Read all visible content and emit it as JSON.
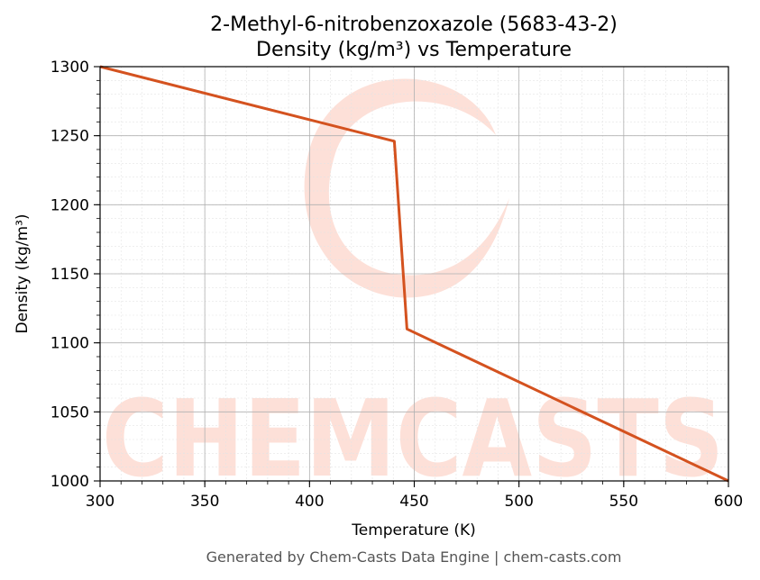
{
  "chart_data": {
    "type": "line",
    "title": "2-Methyl-6-nitrobenzoxazole (5683-43-2)",
    "subtitle": "Density (kg/m³) vs Temperature",
    "xlabel": "Temperature (K)",
    "ylabel": "Density (kg/m³)",
    "xlim": [
      300,
      600
    ],
    "ylim": [
      1000,
      1300
    ],
    "xticks": [
      300,
      350,
      400,
      450,
      500,
      550,
      600
    ],
    "yticks": [
      1000,
      1050,
      1100,
      1150,
      1200,
      1250,
      1300
    ],
    "grid": true,
    "series": [
      {
        "color": "#d4521f",
        "x": [
          300,
          440.5,
          446.5,
          600
        ],
        "y": [
          1303,
          1246,
          1110,
          999
        ]
      }
    ]
  },
  "watermark": {
    "text": "CHEMCASTS",
    "color": "#fde0d8"
  },
  "footer": "Generated by Chem-Casts Data Engine | chem-casts.com"
}
